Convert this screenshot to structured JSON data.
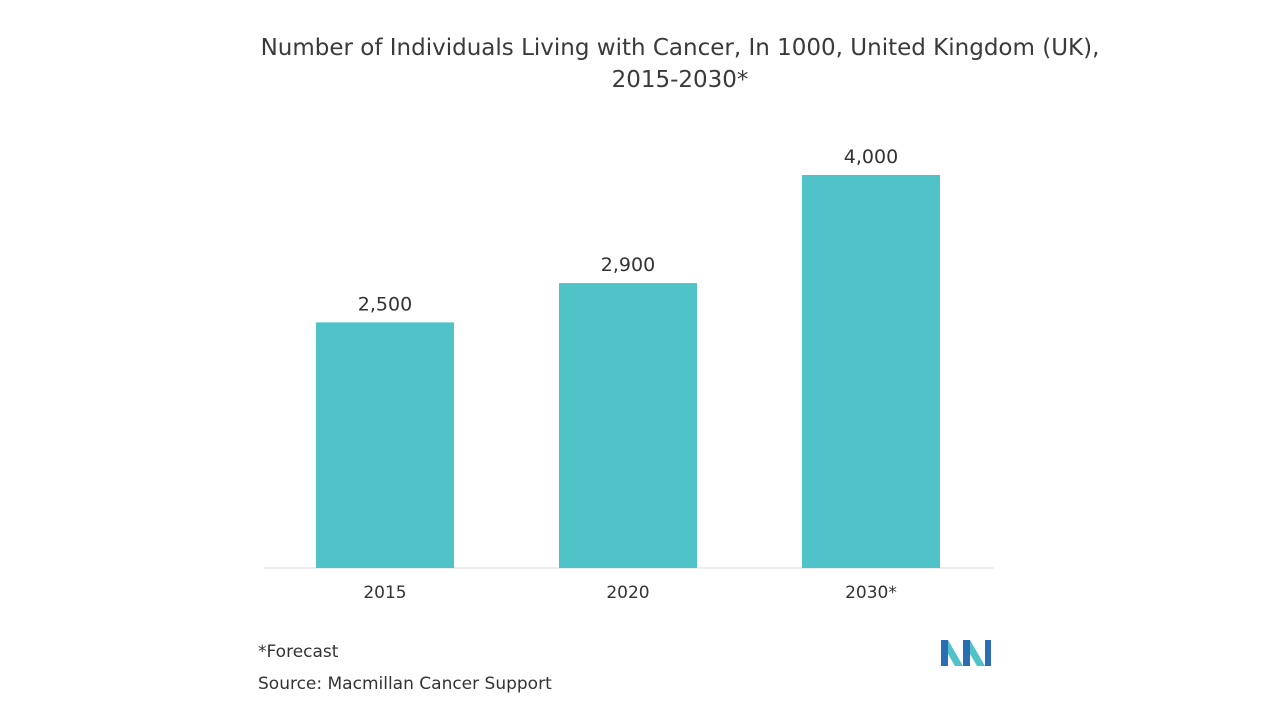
{
  "chart_data": {
    "type": "bar",
    "title": "Number of Individuals Living with Cancer, In 1000, United Kingdom (UK),\n2015-2030*",
    "categories": [
      "2015",
      "2020",
      "2030*"
    ],
    "values": [
      2500,
      2900,
      4000
    ],
    "value_labels": [
      "2,500",
      "2,900",
      "4,000"
    ],
    "xlabel": "",
    "ylabel": "",
    "ylim": [
      0,
      4000
    ],
    "grid": false,
    "legend": "none",
    "bar_color": "#4fc3c8"
  },
  "footnote": "*Forecast",
  "source": "Source: Macmillan Cancer Support",
  "logo": {
    "icon": "mordor-intelligence-logo-icon",
    "colors": [
      "#2a6db3",
      "#4fc3c8"
    ]
  }
}
